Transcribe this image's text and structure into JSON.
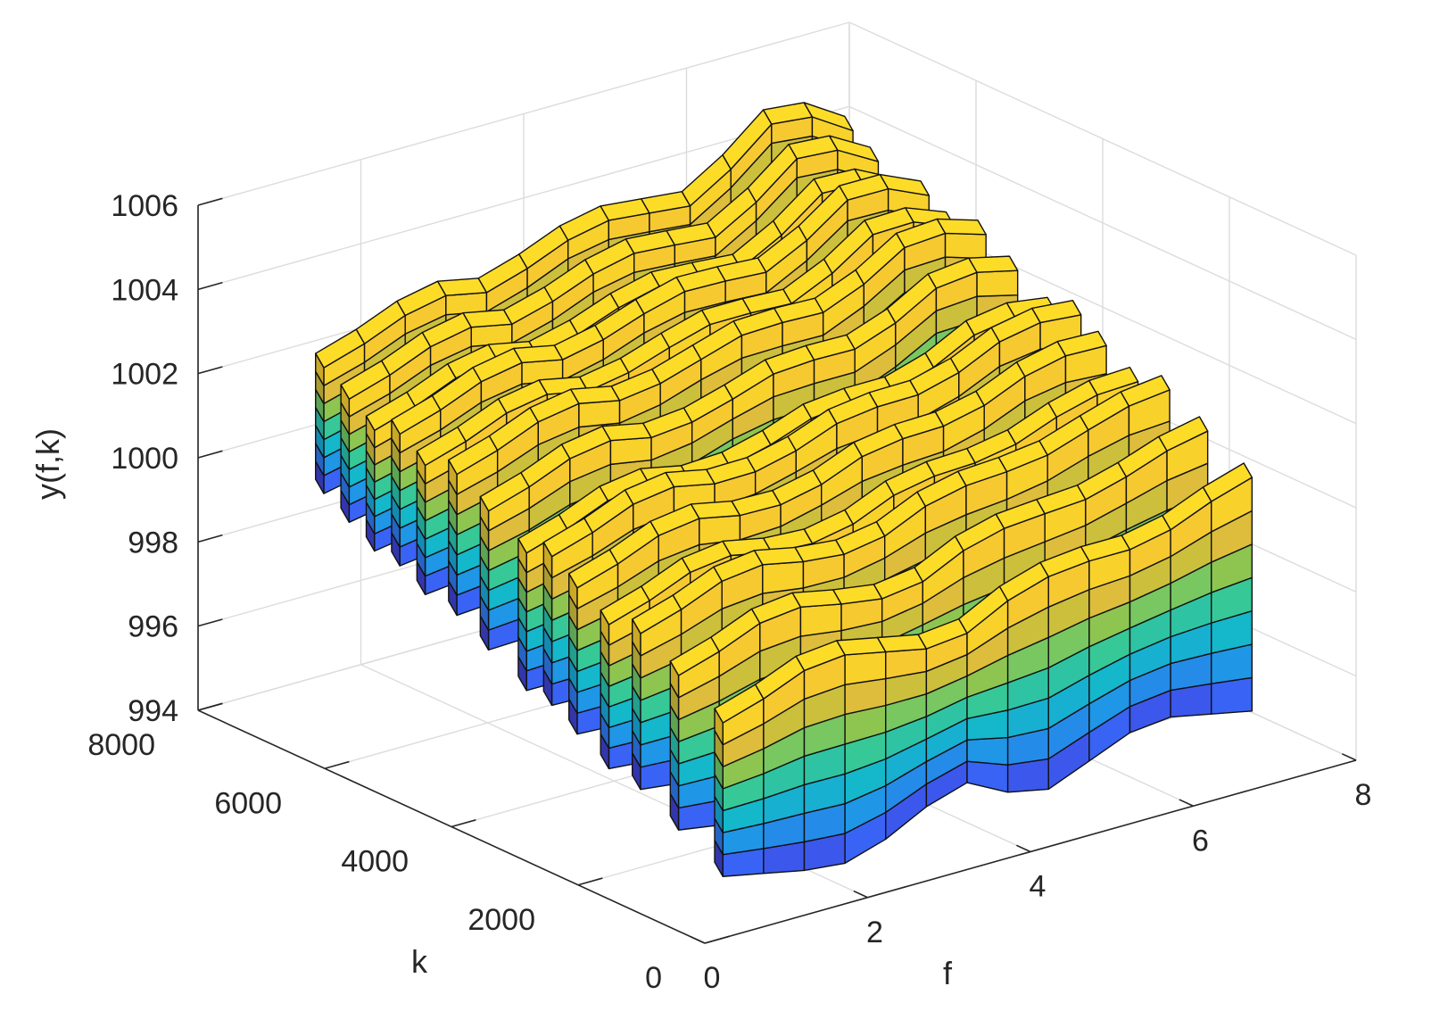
{
  "chart_data": {
    "type": "surface-3d",
    "view": "isometric, viewed from the positive-f / negative-k side",
    "xlabel": "f",
    "ylabel": "k",
    "zlabel": "y(f,k)",
    "xlim": [
      0,
      8
    ],
    "ylim": [
      0,
      8000
    ],
    "zlim": [
      994,
      1006
    ],
    "x_ticks": [
      0,
      2,
      4,
      6,
      8
    ],
    "y_ticks": [
      0,
      2000,
      4000,
      6000,
      8000
    ],
    "z_ticks": [
      994,
      996,
      998,
      1000,
      1002,
      1004,
      1006
    ],
    "x_tick_labels": [
      "0",
      "2",
      "4",
      "6",
      "8"
    ],
    "y_tick_labels": [
      "0",
      "2000",
      "4000",
      "6000",
      "8000"
    ],
    "z_tick_labels": [
      "994",
      "996",
      "998",
      "1000",
      "1002",
      "1004",
      "1006"
    ],
    "grid": true,
    "box": false,
    "colormap": "parula",
    "colormap_stops": [
      "#3e26a8",
      "#3c5ef5",
      "#1f96e6",
      "#14bac9",
      "#3dca8e",
      "#a6c43e",
      "#f6ba39",
      "#f9e022"
    ],
    "surface": {
      "f": [
        1,
        1.5,
        2,
        2.5,
        3,
        3.5,
        4,
        4.5,
        5,
        5.5,
        6,
        6.5,
        7,
        7.5
      ],
      "k_strip_centers": [
        1000,
        1700,
        2300,
        2800,
        3300,
        3700,
        4100,
        4700,
        5200,
        5700,
        6100,
        6500,
        6900,
        7300
      ],
      "y_bottom_at_k_min": [
        994.5,
        994.3,
        994.1,
        994.0,
        994.3,
        994.8,
        995.1,
        994.6,
        994.4,
        994.8,
        995.2,
        995.3,
        995.1,
        994.9
      ],
      "y_top_at_k_min": [
        998.3,
        998.6,
        999.0,
        999.1,
        998.9,
        998.7,
        998.8,
        999.3,
        999.6,
        999.7,
        999.7,
        999.9,
        1000.3,
        1000.6
      ],
      "y_top_at_k_max": [
        1001.9,
        1002.2,
        1002.6,
        1002.8,
        1002.6,
        1002.9,
        1003.3,
        1003.5,
        1003.4,
        1003.3,
        1003.9,
        1004.7,
        1004.6,
        1004.0
      ],
      "y_bottom_at_k_max": [
        999.0,
        999.2,
        999.6,
        999.7,
        999.5,
        999.8,
        1000.3,
        1000.4,
        1000.4,
        1000.3,
        1000.9,
        1001.6,
        1001.5,
        1001.1
      ],
      "height_rows": 7
    }
  }
}
